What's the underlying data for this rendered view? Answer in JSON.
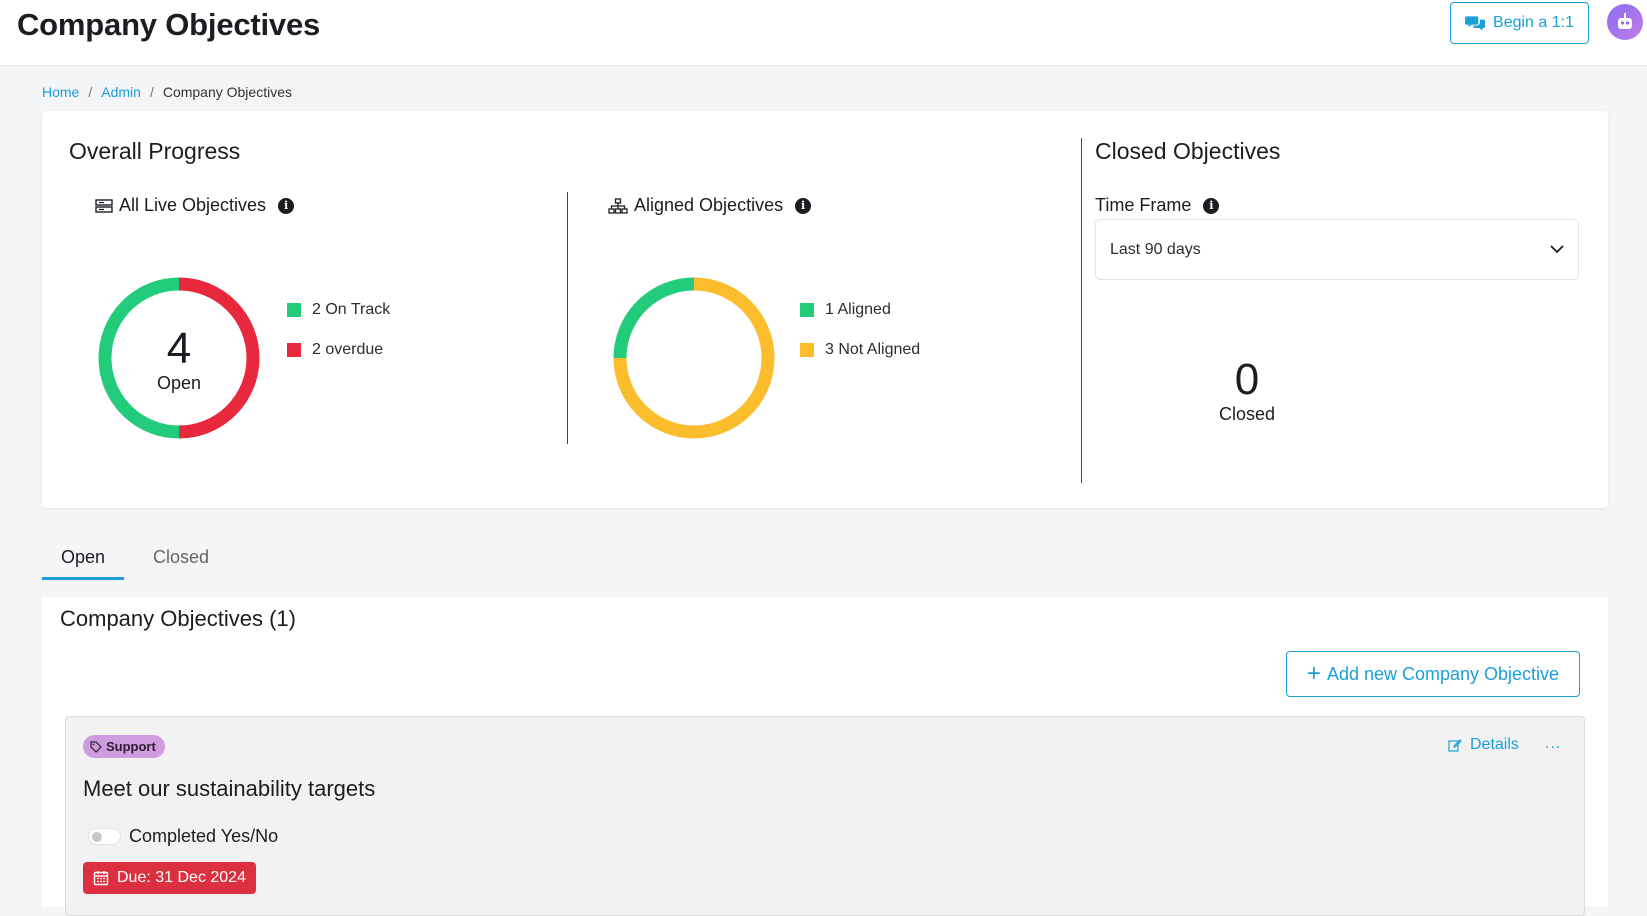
{
  "header": {
    "title": "Company Objectives",
    "begin_label": "Begin a 1:1"
  },
  "breadcrumb": {
    "items": [
      "Home",
      "Admin",
      "Company Objectives"
    ]
  },
  "overall": {
    "title": "Overall Progress",
    "live": {
      "title": "All Live Objectives",
      "count": "4",
      "count_label": "Open",
      "legend": [
        {
          "label": "2 On Track",
          "color": "#22cc7a"
        },
        {
          "label": "2 overdue",
          "color": "#e8283c"
        }
      ]
    },
    "aligned": {
      "title": "Aligned Objectives",
      "legend": [
        {
          "label": "1 Aligned",
          "color": "#22cc7a"
        },
        {
          "label": "3 Not Aligned",
          "color": "#fbbd2c"
        }
      ]
    }
  },
  "closed": {
    "title": "Closed Objectives",
    "timeframe_label": "Time Frame",
    "timeframe_value": "Last 90 days",
    "count": "0",
    "count_label": "Closed"
  },
  "tabs": [
    {
      "label": "Open",
      "active": true
    },
    {
      "label": "Closed",
      "active": false
    }
  ],
  "objectives": {
    "title": "Company Objectives (1)",
    "add_label": "Add new Company Objective",
    "items": [
      {
        "tag": "Support",
        "name": "Meet our sustainability targets",
        "completed_label": "Completed Yes/No",
        "due": "Due: 31 Dec 2024",
        "details_label": "Details",
        "more_label": "..."
      }
    ]
  },
  "chart_data": [
    {
      "type": "pie",
      "title": "All Live Objectives",
      "categories": [
        "On Track",
        "overdue"
      ],
      "values": [
        2,
        2
      ],
      "colors": [
        "#22cc7a",
        "#e8283c"
      ]
    },
    {
      "type": "pie",
      "title": "Aligned Objectives",
      "categories": [
        "Aligned",
        "Not Aligned"
      ],
      "values": [
        1,
        3
      ],
      "colors": [
        "#22cc7a",
        "#fbbd2c"
      ]
    }
  ]
}
